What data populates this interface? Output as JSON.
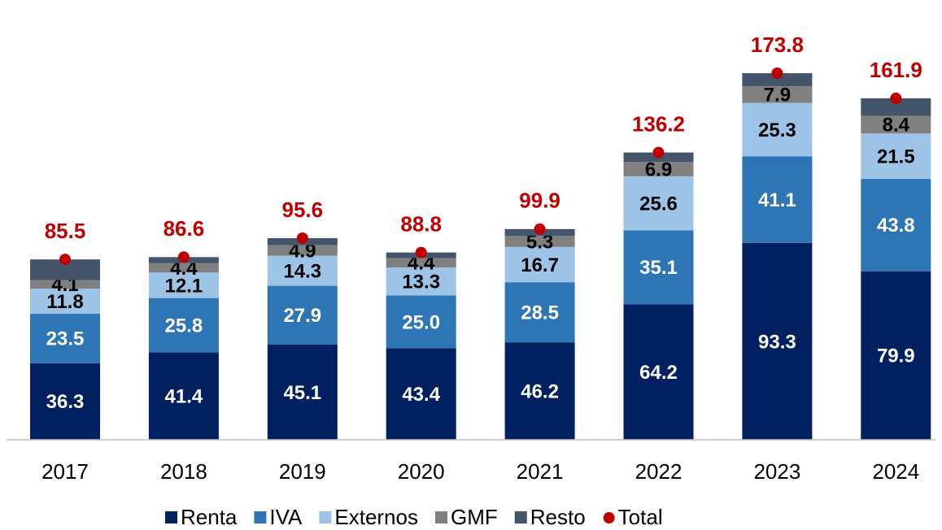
{
  "chart_data": {
    "type": "stacked_bar",
    "categories": [
      "2017",
      "2018",
      "2019",
      "2020",
      "2021",
      "2022",
      "2023",
      "2024"
    ],
    "series": [
      {
        "name": "Renta",
        "color": "#002060",
        "label_color": "#ffffff",
        "values": [
          36.3,
          41.4,
          45.1,
          43.4,
          46.2,
          64.2,
          93.3,
          79.9
        ]
      },
      {
        "name": "IVA",
        "color": "#2e75b6",
        "label_color": "#ffffff",
        "values": [
          23.5,
          25.8,
          27.9,
          25,
          28.5,
          35.1,
          41.1,
          43.8
        ],
        "value_labels": [
          "23.5",
          "25.8",
          "27.9",
          "25.0",
          "28.5",
          "35.1",
          "41.1",
          "43.8"
        ]
      },
      {
        "name": "Externos",
        "color": "#9dc3e6",
        "label_color": "#000000",
        "values": [
          11.8,
          12.1,
          14.3,
          13.3,
          16.7,
          25.6,
          25.3,
          21.5
        ]
      },
      {
        "name": "GMF",
        "color": "#808080",
        "label_color": "#000000",
        "values": [
          4.1,
          4.4,
          4.9,
          4.4,
          5.3,
          6.9,
          7.9,
          8.4
        ]
      },
      {
        "name": "Resto",
        "color": "#44546a",
        "show_labels": false,
        "values": [
          9.8,
          2.9,
          3.4,
          2.7,
          3.2,
          4.4,
          6.2,
          8.3
        ]
      }
    ],
    "total": {
      "name": "Total",
      "color": "#c00000",
      "values": [
        85.5,
        86.6,
        95.6,
        88.8,
        99.9,
        136.2,
        173.8,
        161.9
      ]
    },
    "ylim": [
      0,
      190
    ],
    "legend": "bottom"
  }
}
